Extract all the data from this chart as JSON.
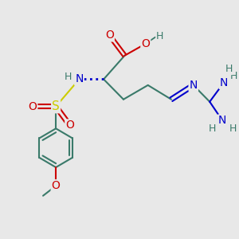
{
  "background_color": "#e8e8e8",
  "colors": {
    "C": "#3a7a6a",
    "N": "#0000cc",
    "O": "#cc0000",
    "S": "#cccc00",
    "H": "#3a7a6a"
  },
  "figsize": [
    3.0,
    3.0
  ],
  "dpi": 100
}
